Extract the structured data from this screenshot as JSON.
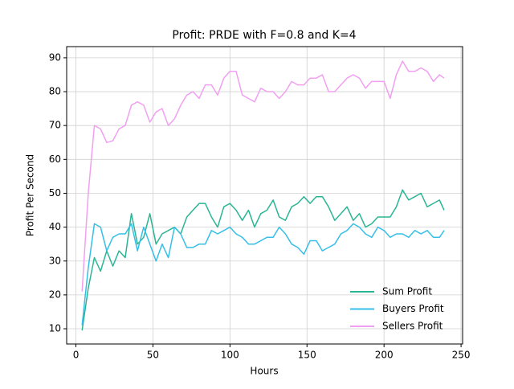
{
  "chart_data": {
    "type": "line",
    "title": "Profit: PRDE with F=0.8 and K=4",
    "x_label": "Hours",
    "y_label": "Profit Per Second",
    "x": [
      4,
      8,
      12,
      16,
      20,
      24,
      28,
      32,
      36,
      40,
      44,
      48,
      52,
      56,
      60,
      64,
      68,
      72,
      76,
      80,
      84,
      88,
      92,
      96,
      100,
      104,
      108,
      112,
      116,
      120,
      124,
      128,
      132,
      136,
      140,
      144,
      148,
      152,
      156,
      160,
      164,
      168,
      172,
      176,
      180,
      184,
      188,
      192,
      196,
      200,
      204,
      208,
      212,
      216,
      220,
      224,
      228,
      232,
      236,
      239
    ],
    "series": [
      {
        "name": "Sum Profit",
        "color": "#2ab594",
        "values": [
          9.5,
          22,
          31,
          27,
          33,
          28.5,
          33,
          31,
          44,
          35,
          37,
          44,
          35,
          38,
          39,
          40,
          38,
          43,
          45,
          47,
          47,
          43,
          40,
          46,
          47,
          45,
          42,
          45,
          40,
          44,
          45,
          48,
          43,
          42,
          46,
          47,
          49,
          47,
          49,
          49,
          46,
          42,
          44,
          46,
          42,
          44,
          40,
          41,
          43,
          43,
          43,
          46,
          51,
          48,
          49,
          50,
          46,
          47,
          48,
          45
        ]
      },
      {
        "name": "Buyers Profit",
        "color": "#35bfe8",
        "values": [
          11,
          28,
          41,
          40,
          33,
          37,
          38,
          38,
          41,
          33,
          40,
          35,
          30,
          35,
          31,
          40,
          38,
          34,
          34,
          35,
          35,
          39,
          38,
          39,
          40,
          38,
          37,
          35,
          35,
          36,
          37,
          37,
          40,
          38,
          35,
          34,
          32,
          36,
          36,
          33,
          34,
          35,
          38,
          39,
          41,
          40,
          38,
          37,
          40,
          39,
          37,
          38,
          38,
          37,
          39,
          38,
          39,
          37,
          37,
          39
        ]
      },
      {
        "name": "Sellers Profit",
        "color": "#f0a0f0",
        "values": [
          21,
          50,
          70,
          69,
          65,
          65.5,
          69,
          70,
          76,
          77,
          76,
          71,
          74,
          75,
          70,
          72,
          76,
          79,
          80,
          78,
          82,
          82,
          79,
          84,
          86,
          86,
          79,
          78,
          77,
          81,
          80,
          80,
          78,
          80,
          83,
          82,
          82,
          84,
          84,
          85,
          80,
          80,
          82,
          84,
          85,
          84,
          81,
          83,
          83,
          83,
          78,
          85,
          89,
          86,
          86,
          87,
          86,
          83,
          85,
          84
        ]
      }
    ],
    "xlim": [
      -6,
      251
    ],
    "ylim": [
      5.5,
      93.3
    ],
    "xticks": [
      0,
      50,
      100,
      150,
      200,
      250
    ],
    "yticks": [
      10,
      20,
      30,
      40,
      50,
      60,
      70,
      80,
      90
    ],
    "grid": true,
    "legend": "lower right"
  }
}
